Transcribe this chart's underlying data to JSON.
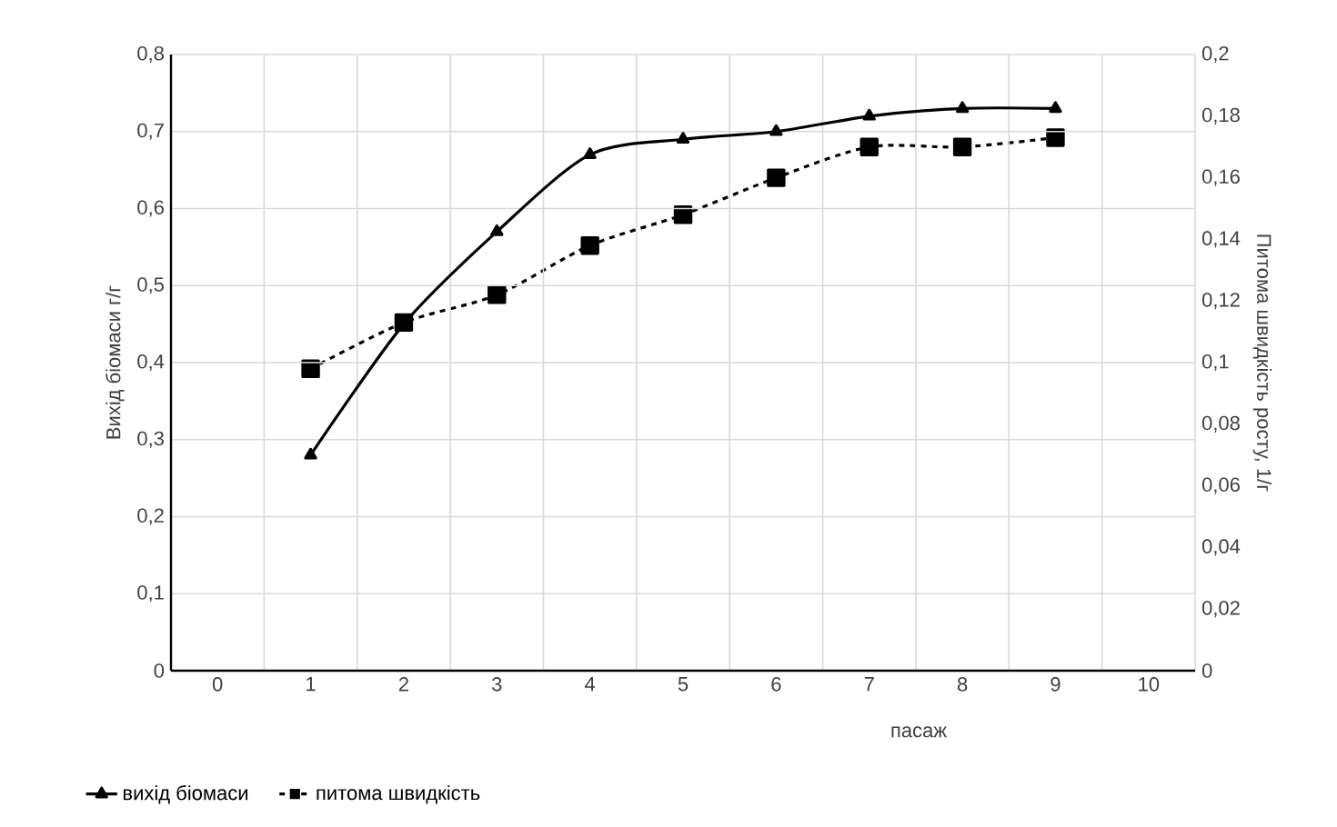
{
  "chart_data": {
    "type": "line",
    "xlabel": "пасаж",
    "ylabel": "Вихід біомаси г/г",
    "y2label": "Питома швидкість росту, 1/г",
    "categories": [
      "0",
      "1",
      "2",
      "3",
      "4",
      "5",
      "6",
      "7",
      "8",
      "9",
      "10"
    ],
    "series": [
      {
        "name": "вихід біомаси",
        "color": "#000000",
        "marker": "triangle",
        "line_style": "solid",
        "values": [
          null,
          0.28,
          0.45,
          0.57,
          0.67,
          0.69,
          0.7,
          0.72,
          0.73,
          0.73,
          null
        ]
      },
      {
        "name": "питома швидкість",
        "color": "#000000",
        "marker": "square",
        "line_style": "dashed",
        "axis": "y2",
        "values": [
          null,
          0.098,
          0.113,
          0.122,
          0.138,
          0.148,
          0.16,
          0.17,
          0.17,
          0.173,
          null
        ]
      }
    ],
    "ylim": [
      0,
      0.8
    ],
    "yticks": [
      0,
      {
        "value": 0.1,
        "label": "0,1"
      },
      {
        "value": 0.2,
        "label": "0,2"
      },
      {
        "value": 0.3,
        "label": "0,3"
      },
      {
        "value": 0.4,
        "label": "0,4"
      },
      {
        "value": 0.5,
        "label": "0,5"
      },
      {
        "value": 0.6,
        "label": "0,6"
      },
      {
        "value": 0.7,
        "label": "0,7"
      },
      {
        "value": 0.8,
        "label": "0,8"
      }
    ],
    "y2lim": [
      0,
      0.2
    ],
    "y2ticks": [
      0,
      {
        "value": 0.02,
        "label": "0,02"
      },
      {
        "value": 0.04,
        "label": "0,04"
      },
      {
        "value": 0.06,
        "label": "0,06"
      },
      {
        "value": 0.08,
        "label": "0,08"
      },
      {
        "value": 0.1,
        "label": "0,1"
      },
      {
        "value": 0.12,
        "label": "0,12"
      },
      {
        "value": 0.14,
        "label": "0,14"
      },
      {
        "value": 0.16,
        "label": "0,16"
      },
      {
        "value": 0.18,
        "label": "0,18"
      },
      {
        "value": 0.2,
        "label": "0,2"
      }
    ],
    "grid": true,
    "legend": "bottom left"
  }
}
